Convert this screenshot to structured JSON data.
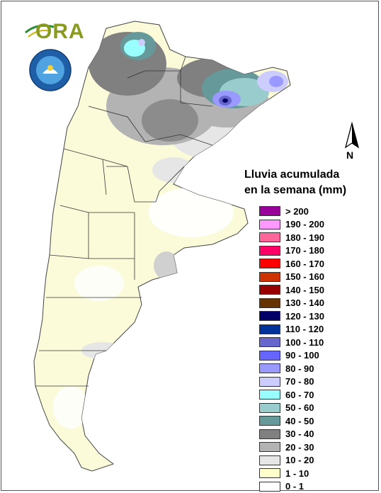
{
  "logo": {
    "text": "ORA"
  },
  "seal": {
    "text": "SERVICIO METEOROLÓGICO NACIONAL · ARGENTINA",
    "icon": "smn-seal-icon"
  },
  "compass": {
    "label": "N",
    "icon": "north-arrow-icon"
  },
  "legend": {
    "title_line1": "Lluvia acumulada",
    "title_line2": "en la semana (mm)",
    "items": [
      {
        "label": "> 200",
        "color": "#990099"
      },
      {
        "label": "190 - 200",
        "color": "#ff99ff"
      },
      {
        "label": "180 - 190",
        "color": "#ff6699"
      },
      {
        "label": "170 - 180",
        "color": "#ff0066"
      },
      {
        "label": "160 - 170",
        "color": "#ff0000"
      },
      {
        "label": "150 - 160",
        "color": "#cc3300"
      },
      {
        "label": "140 - 150",
        "color": "#990000"
      },
      {
        "label": "130 - 140",
        "color": "#663300"
      },
      {
        "label": "120 - 130",
        "color": "#000066"
      },
      {
        "label": "110 - 120",
        "color": "#003399"
      },
      {
        "label": "100 - 110",
        "color": "#6666cc"
      },
      {
        "label": "90 - 100",
        "color": "#6666ff"
      },
      {
        "label": "80 - 90",
        "color": "#9999ff"
      },
      {
        "label": "70 - 80",
        "color": "#ccccff"
      },
      {
        "label": "60 - 70",
        "color": "#99ffff"
      },
      {
        "label": "50 - 60",
        "color": "#99cccc"
      },
      {
        "label": "40 - 50",
        "color": "#669999"
      },
      {
        "label": "30 - 40",
        "color": "#808080"
      },
      {
        "label": "20 - 30",
        "color": "#b3b3b3"
      },
      {
        "label": "10 - 20",
        "color": "#e6e6e6"
      },
      {
        "label": "1 - 10",
        "color": "#ffffcc"
      },
      {
        "label": "0 - 1",
        "color": "#ffffff"
      }
    ]
  }
}
